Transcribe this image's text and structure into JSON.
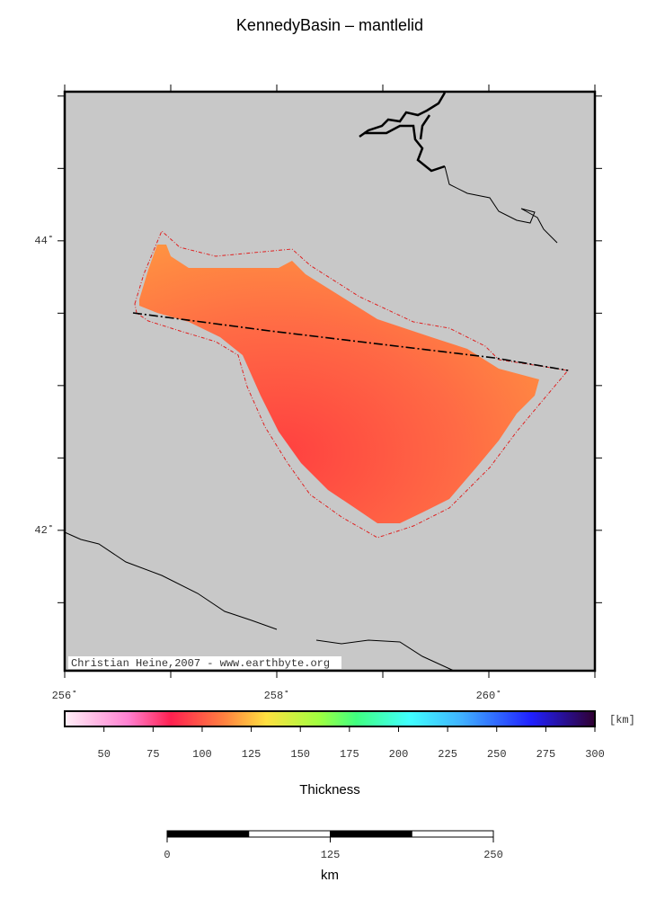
{
  "title": "KennedyBasin – mantlelid",
  "map": {
    "xlim": [
      256,
      261
    ],
    "ylim": [
      41.03,
      45.03
    ],
    "xticks": [
      {
        "value": 256,
        "label": "256˚"
      },
      {
        "value": 258,
        "label": "258˚"
      },
      {
        "value": 260,
        "label": "260˚"
      }
    ],
    "yticks": [
      {
        "value": 42,
        "label": "42˚"
      },
      {
        "value": 44,
        "label": "44˚"
      }
    ],
    "xtick_marks": [
      256,
      257,
      258,
      259,
      260,
      261
    ],
    "ytick_marks": [
      41.5,
      42,
      42.5,
      43,
      43.5,
      44,
      44.5,
      45
    ],
    "credit": "Christian Heine,2007 - www.earthbyte.org"
  },
  "colorbar": {
    "label": "Thickness",
    "unit": "[km]",
    "xlim": [
      30,
      300
    ],
    "xticks": [
      50,
      75,
      100,
      125,
      150,
      175,
      200,
      225,
      250,
      275,
      300
    ]
  },
  "scalebar": {
    "label": "km",
    "xlim": [
      0,
      250
    ],
    "xticks": [
      0,
      125,
      250
    ]
  }
}
